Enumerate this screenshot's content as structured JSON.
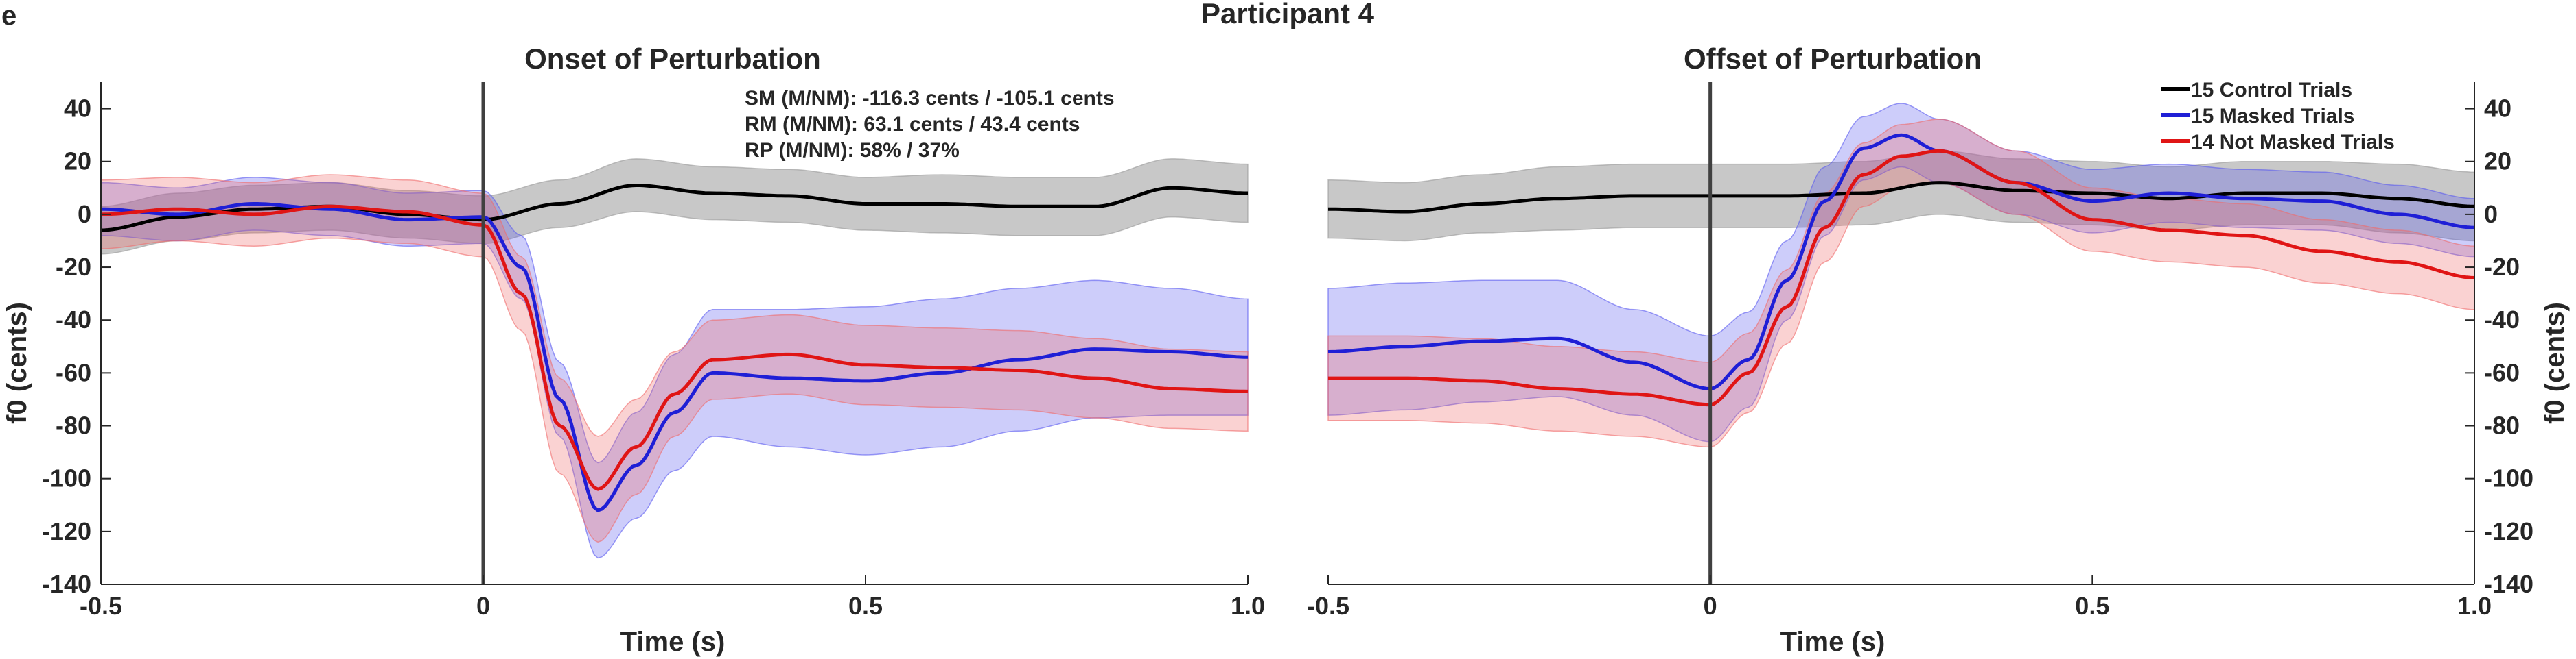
{
  "figure": {
    "panel_letter": "e",
    "title": "Participant 4"
  },
  "legend": {
    "placement": "top-right",
    "items": [
      {
        "label": "15 Control Trials",
        "color": "#000000"
      },
      {
        "label": "15 Masked Trials",
        "color": "#1f1fd6"
      },
      {
        "label": "14 Not Masked Trials",
        "color": "#e01515"
      }
    ]
  },
  "annotation": {
    "lines": [
      "SM (M/NM): -116.3 cents / -105.1 cents",
      "RM (M/NM): 63.1 cents / 43.4 cents",
      "RP (M/NM): 58% / 37%"
    ]
  },
  "chart_data": [
    {
      "type": "line",
      "title": "Onset of Perturbation",
      "xlabel": "Time (s)",
      "ylabel": "f0 (cents)",
      "xlim": [
        -0.5,
        1.0
      ],
      "ylim": [
        -140,
        50
      ],
      "xticks": [
        -0.5,
        0,
        0.5,
        1.0
      ],
      "xtick_labels": [
        "-0.5",
        "0",
        "0.5",
        "1.0"
      ],
      "yticks": [
        40,
        20,
        0,
        -20,
        -40,
        -60,
        -80,
        -100,
        -120,
        -140
      ],
      "ytick_labels": [
        "40",
        "20",
        "0",
        "-20",
        "-40",
        "-60",
        "-80",
        "-100",
        "-120",
        "-140"
      ],
      "y_axis_side": "left",
      "grid": false,
      "vline_x": 0,
      "series": [
        {
          "name": "15 Control Trials",
          "color": "#000000",
          "band_color": "#9a9a9a",
          "band_opacity": 0.55,
          "x": [
            -0.5,
            -0.4,
            -0.3,
            -0.2,
            -0.1,
            0.0,
            0.1,
            0.2,
            0.3,
            0.4,
            0.5,
            0.6,
            0.7,
            0.8,
            0.9,
            1.0
          ],
          "mean": [
            -6,
            -1,
            2,
            3,
            0,
            -2,
            4,
            11,
            8,
            7,
            4,
            4,
            3,
            3,
            10,
            8
          ],
          "sd": [
            9,
            9,
            9,
            9,
            9,
            9,
            9,
            10,
            10,
            10,
            10,
            11,
            11,
            11,
            11,
            11
          ]
        },
        {
          "name": "15 Masked Trials",
          "color": "#1f1fd6",
          "band_color": "#5a5af0",
          "band_opacity": 0.3,
          "x": [
            -0.5,
            -0.4,
            -0.3,
            -0.2,
            -0.1,
            0.0,
            0.05,
            0.1,
            0.15,
            0.2,
            0.25,
            0.3,
            0.4,
            0.5,
            0.6,
            0.7,
            0.8,
            0.9,
            1.0
          ],
          "mean": [
            2,
            0,
            4,
            2,
            -2,
            -1,
            -20,
            -70,
            -112,
            -95,
            -75,
            -60,
            -62,
            -63,
            -60,
            -55,
            -51,
            -52,
            -54
          ],
          "sd": [
            10,
            10,
            10,
            10,
            10,
            10,
            12,
            14,
            18,
            20,
            22,
            24,
            26,
            28,
            28,
            27,
            26,
            24,
            22
          ]
        },
        {
          "name": "14 Not Masked Trials",
          "color": "#e01515",
          "band_color": "#f06a6a",
          "band_opacity": 0.3,
          "x": [
            -0.5,
            -0.4,
            -0.3,
            -0.2,
            -0.1,
            0.0,
            0.05,
            0.1,
            0.15,
            0.2,
            0.25,
            0.3,
            0.4,
            0.5,
            0.6,
            0.7,
            0.8,
            0.9,
            1.0
          ],
          "mean": [
            0,
            2,
            0,
            3,
            1,
            -4,
            -30,
            -80,
            -104,
            -88,
            -68,
            -55,
            -53,
            -57,
            -58,
            -59,
            -62,
            -66,
            -67
          ],
          "sd": [
            13,
            12,
            12,
            12,
            12,
            12,
            14,
            18,
            20,
            18,
            16,
            15,
            15,
            15,
            15,
            15,
            15,
            15,
            15
          ]
        }
      ]
    },
    {
      "type": "line",
      "title": "Offset of Perturbation",
      "xlabel": "Time (s)",
      "ylabel": "f0 (cents)",
      "xlim": [
        -0.5,
        1.0
      ],
      "ylim": [
        -140,
        50
      ],
      "xticks": [
        -0.5,
        0,
        0.5,
        1.0
      ],
      "xtick_labels": [
        "-0.5",
        "0",
        "0.5",
        "1.0"
      ],
      "yticks": [
        40,
        20,
        0,
        -20,
        -40,
        -60,
        -80,
        -100,
        -120,
        -140
      ],
      "ytick_labels": [
        "40",
        "20",
        "0",
        "-20",
        "-40",
        "-60",
        "-80",
        "-100",
        "-120",
        "-140"
      ],
      "y_axis_side": "right",
      "grid": false,
      "vline_x": 0,
      "series": [
        {
          "name": "15 Control Trials",
          "color": "#000000",
          "band_color": "#9a9a9a",
          "band_opacity": 0.55,
          "x": [
            -0.5,
            -0.4,
            -0.3,
            -0.2,
            -0.1,
            0.0,
            0.1,
            0.2,
            0.3,
            0.4,
            0.5,
            0.6,
            0.7,
            0.8,
            0.9,
            1.0
          ],
          "mean": [
            2,
            1,
            4,
            6,
            7,
            7,
            7,
            8,
            12,
            9,
            8,
            6,
            8,
            8,
            6,
            3
          ],
          "sd": [
            11,
            11,
            11,
            12,
            12,
            12,
            12,
            12,
            12,
            12,
            12,
            12,
            12,
            12,
            13,
            13
          ]
        },
        {
          "name": "15 Masked Trials",
          "color": "#1f1fd6",
          "band_color": "#5a5af0",
          "band_opacity": 0.3,
          "x": [
            -0.5,
            -0.4,
            -0.3,
            -0.2,
            -0.1,
            0.0,
            0.05,
            0.1,
            0.15,
            0.2,
            0.25,
            0.3,
            0.4,
            0.5,
            0.6,
            0.7,
            0.8,
            0.9,
            1.0
          ],
          "mean": [
            -52,
            -50,
            -48,
            -47,
            -56,
            -66,
            -55,
            -25,
            5,
            25,
            30,
            24,
            12,
            5,
            8,
            6,
            5,
            0,
            -5
          ],
          "sd": [
            24,
            24,
            23,
            22,
            20,
            20,
            18,
            15,
            13,
            12,
            12,
            12,
            12,
            12,
            11,
            11,
            11,
            11,
            11
          ]
        },
        {
          "name": "14 Not Masked Trials",
          "color": "#e01515",
          "band_color": "#f06a6a",
          "band_opacity": 0.3,
          "x": [
            -0.5,
            -0.4,
            -0.3,
            -0.2,
            -0.1,
            0.0,
            0.05,
            0.1,
            0.15,
            0.2,
            0.25,
            0.3,
            0.4,
            0.5,
            0.6,
            0.7,
            0.8,
            0.9,
            1.0
          ],
          "mean": [
            -62,
            -62,
            -63,
            -66,
            -68,
            -72,
            -60,
            -35,
            -5,
            15,
            22,
            24,
            12,
            -2,
            -6,
            -8,
            -14,
            -18,
            -24
          ],
          "sd": [
            16,
            16,
            16,
            16,
            16,
            16,
            15,
            14,
            13,
            12,
            12,
            12,
            12,
            12,
            12,
            12,
            12,
            12,
            12
          ]
        }
      ]
    }
  ]
}
